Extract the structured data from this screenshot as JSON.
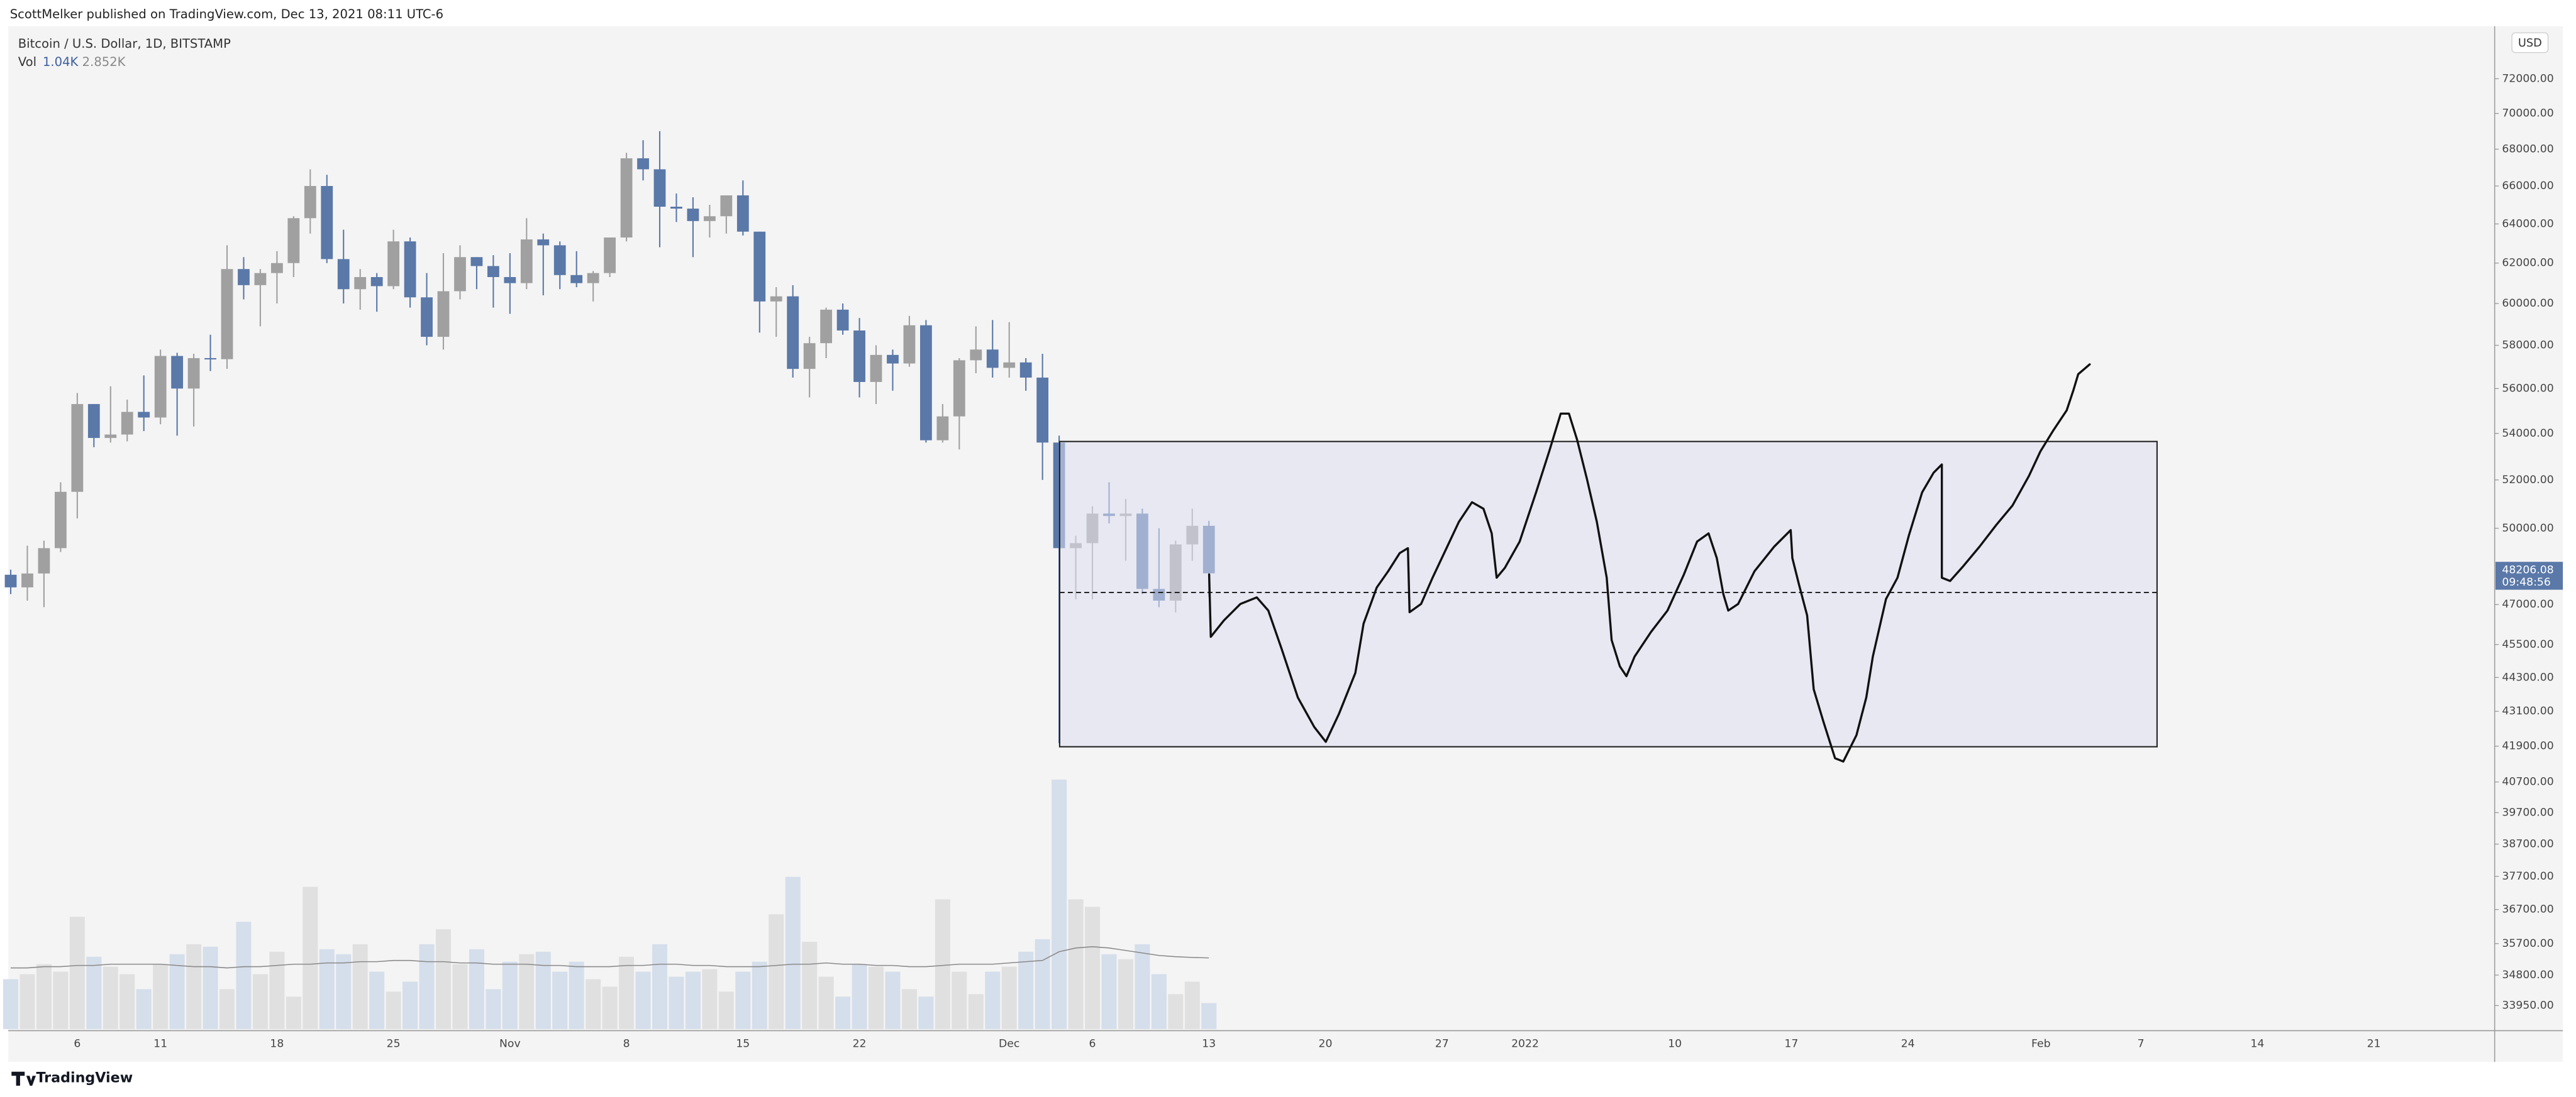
{
  "chart_data": {
    "type": "candlestick",
    "publisher_note": "ScottMelker published on TradingView.com, Dec 13, 2021 08:11 UTC-6",
    "title": "Bitcoin / U.S. Dollar, 1D, BITSTAMP",
    "volume_label": "Vol",
    "volume_last": "1.04K",
    "volume_ma_last": "2.852K",
    "countdown": "09:48:56",
    "currency": "USD",
    "brand": "TradingView",
    "log_scale": true,
    "grid": false,
    "up_color": "#a0a0a0",
    "down_color": "#5a78a8",
    "volume_up_color": "#e0e0e0",
    "volume_down_color": "#d5deeb",
    "volume_ma_color": "#8a8a8a",
    "ylim": [
      32520,
      75130
    ],
    "volume_ylim": [
      0,
      40
    ],
    "yticks": [
      {
        "value": 72000,
        "label": "72000.00"
      },
      {
        "value": 70000,
        "label": "70000.00"
      },
      {
        "value": 68000,
        "label": "68000.00"
      },
      {
        "value": 66000,
        "label": "66000.00"
      },
      {
        "value": 64000,
        "label": "64000.00"
      },
      {
        "value": 62000,
        "label": "62000.00"
      },
      {
        "value": 60000,
        "label": "60000.00"
      },
      {
        "value": 58000,
        "label": "58000.00"
      },
      {
        "value": 56000,
        "label": "56000.00"
      },
      {
        "value": 54000,
        "label": "54000.00"
      },
      {
        "value": 52000,
        "label": "52000.00"
      },
      {
        "value": 50000,
        "label": "50000.00"
      },
      {
        "value": 47000,
        "label": "47000.00"
      },
      {
        "value": 45500,
        "label": "45500.00"
      },
      {
        "value": 44300,
        "label": "44300.00"
      },
      {
        "value": 43100,
        "label": "43100.00"
      },
      {
        "value": 41900,
        "label": "41900.00"
      },
      {
        "value": 40700,
        "label": "40700.00"
      },
      {
        "value": 39700,
        "label": "39700.00"
      },
      {
        "value": 38700,
        "label": "38700.00"
      },
      {
        "value": 37700,
        "label": "37700.00"
      },
      {
        "value": 36700,
        "label": "36700.00"
      },
      {
        "value": 35700,
        "label": "35700.00"
      },
      {
        "value": 34800,
        "label": "34800.00"
      },
      {
        "value": 33950,
        "label": "33950.00"
      }
    ],
    "categories": [
      null,
      null,
      null,
      null,
      "6",
      null,
      null,
      null,
      null,
      "11",
      null,
      null,
      null,
      null,
      null,
      null,
      "18",
      null,
      null,
      null,
      null,
      null,
      null,
      "25",
      null,
      null,
      null,
      null,
      null,
      null,
      "Nov",
      null,
      null,
      null,
      null,
      null,
      null,
      "8",
      null,
      null,
      null,
      null,
      null,
      null,
      "15",
      null,
      null,
      null,
      null,
      null,
      null,
      "22",
      null,
      null,
      null,
      null,
      null,
      null,
      null,
      null,
      "Dec",
      null,
      null,
      null,
      null,
      "6",
      null,
      null,
      null,
      null,
      null,
      null,
      "13",
      null,
      null,
      null,
      null,
      null,
      null,
      "20",
      null,
      null,
      null,
      null,
      null,
      null,
      "27",
      null,
      null,
      null,
      null,
      "2022",
      null,
      null,
      null,
      null,
      null,
      null,
      null,
      null,
      "10",
      null,
      null,
      null,
      null,
      null,
      null,
      "17",
      null,
      null,
      null,
      null,
      null,
      null,
      "24",
      null,
      null,
      null,
      null,
      null,
      null,
      null,
      "Feb",
      null,
      null,
      null,
      null,
      null,
      "7",
      null,
      null,
      null,
      null,
      null,
      null,
      "14",
      null,
      null,
      null,
      null,
      null,
      null,
      "21"
    ],
    "open": [
      48150,
      47660,
      48200,
      49200,
      51500,
      55300,
      53800,
      53950,
      54950,
      54700,
      57500,
      56000,
      57400,
      57350,
      61700,
      60900,
      61500,
      62000,
      64300,
      66000,
      62200,
      60700,
      61300,
      60850,
      63100,
      60300,
      58400,
      60600,
      62300,
      61850,
      61300,
      61000,
      63200,
      62900,
      61400,
      61000,
      61500,
      63300,
      67500,
      66900,
      64900,
      64800,
      64150,
      64400,
      65500,
      63600,
      60100,
      60350,
      56900,
      58100,
      59700,
      58700,
      56300,
      57550,
      57150,
      58950,
      53700,
      54750,
      57300,
      57800,
      56950,
      57200,
      56500,
      53600,
      49200,
      49400,
      50600,
      50500,
      50600,
      47600,
      47150,
      49350,
      50100,
      null,
      null,
      null,
      null,
      null,
      null,
      null,
      null,
      null,
      null,
      null,
      null,
      null,
      null,
      null,
      null,
      null,
      null,
      null,
      null,
      null,
      null,
      null,
      null,
      null,
      null,
      null,
      null,
      null,
      null,
      null,
      null,
      null,
      null,
      null,
      null,
      null,
      null,
      null,
      null,
      null,
      null,
      null,
      null,
      null,
      null,
      null,
      null,
      null,
      null,
      null,
      null,
      null,
      null,
      null,
      null,
      null,
      null,
      null,
      null,
      null,
      null,
      null,
      null,
      null,
      null,
      null,
      null,
      null,
      null
    ],
    "high": [
      48350,
      49300,
      49500,
      51900,
      55800,
      55300,
      56100,
      55500,
      56600,
      57800,
      57650,
      57600,
      58500,
      62900,
      62300,
      61700,
      62600,
      64400,
      66900,
      66600,
      63700,
      61700,
      61500,
      63700,
      63300,
      61500,
      62500,
      62900,
      62300,
      62400,
      62500,
      64300,
      63500,
      63100,
      62600,
      61600,
      63300,
      67800,
      68500,
      69000,
      65600,
      65400,
      65000,
      65500,
      66300,
      63600,
      60800,
      60900,
      58400,
      59800,
      60000,
      59300,
      58000,
      57800,
      59400,
      59200,
      55300,
      57400,
      58900,
      59200,
      59100,
      57400,
      57600,
      53900,
      49700,
      50900,
      51900,
      51200,
      50800,
      50000,
      49500,
      50800,
      50300,
      null,
      null,
      null,
      null,
      null,
      null,
      null,
      null,
      null,
      null,
      null,
      null,
      null,
      null,
      null,
      null,
      null,
      null,
      null,
      null,
      null,
      null,
      null,
      null,
      null,
      null,
      null,
      null,
      null,
      null,
      null,
      null,
      null,
      null,
      null,
      null,
      null,
      null,
      null,
      null,
      null,
      null,
      null,
      null,
      null,
      null,
      null,
      null,
      null,
      null,
      null,
      null,
      null,
      null,
      null,
      null,
      null,
      null,
      null,
      null,
      null,
      null,
      null,
      null,
      null,
      null,
      null,
      null,
      null,
      null
    ],
    "low": [
      47400,
      47150,
      46900,
      49050,
      50400,
      53400,
      53600,
      53650,
      54100,
      54400,
      53900,
      54300,
      56800,
      56900,
      60200,
      58900,
      60000,
      61300,
      63500,
      62000,
      60000,
      59700,
      59600,
      60700,
      59800,
      58000,
      57800,
      60200,
      60700,
      59800,
      59500,
      60700,
      60400,
      60700,
      60800,
      60100,
      61300,
      63100,
      66300,
      62800,
      64100,
      62300,
      63300,
      63500,
      63400,
      58600,
      58400,
      56500,
      55600,
      57400,
      58500,
      55600,
      55300,
      55900,
      57000,
      53600,
      53600,
      53300,
      56700,
      56500,
      56500,
      55900,
      52000,
      42000,
      47200,
      47200,
      50200,
      48700,
      47400,
      46900,
      46700,
      48700,
      47300,
      null,
      null,
      null,
      null,
      null,
      null,
      null,
      null,
      null,
      null,
      null,
      null,
      null,
      null,
      null,
      null,
      null,
      null,
      null,
      null,
      null,
      null,
      null,
      null,
      null,
      null,
      null,
      null,
      null,
      null,
      null,
      null,
      null,
      null,
      null,
      null,
      null,
      null,
      null,
      null,
      null,
      null,
      null,
      null,
      null,
      null,
      null,
      null,
      null,
      null,
      null,
      null,
      null,
      null,
      null,
      null,
      null,
      null,
      null,
      null,
      null,
      null,
      null,
      null,
      null,
      null,
      null,
      null,
      null,
      null
    ],
    "close": [
      47660,
      48200,
      49200,
      51500,
      55300,
      53800,
      53950,
      54950,
      54700,
      57500,
      56000,
      57400,
      57350,
      61700,
      60900,
      61500,
      62000,
      64300,
      66000,
      62200,
      60700,
      61300,
      60850,
      63100,
      60300,
      58400,
      60600,
      62300,
      61850,
      61300,
      61000,
      63200,
      62900,
      61400,
      61000,
      61500,
      63300,
      67500,
      66900,
      64900,
      64800,
      64150,
      64400,
      65500,
      63600,
      60100,
      60350,
      56900,
      58100,
      59700,
      58700,
      56300,
      57550,
      57150,
      58950,
      53700,
      54750,
      57300,
      57800,
      56950,
      57200,
      56500,
      53600,
      49200,
      49400,
      50600,
      50500,
      50600,
      47600,
      47150,
      49350,
      50100,
      48206.08,
      null,
      null,
      null,
      null,
      null,
      null,
      null,
      null,
      null,
      null,
      null,
      null,
      null,
      null,
      null,
      null,
      null,
      null,
      null,
      null,
      null,
      null,
      null,
      null,
      null,
      null,
      null,
      null,
      null,
      null,
      null,
      null,
      null,
      null,
      null,
      null,
      null,
      null,
      null,
      null,
      null,
      null,
      null,
      null,
      null,
      null,
      null,
      null,
      null,
      null,
      null,
      null,
      null,
      null,
      null,
      null,
      null,
      null,
      null,
      null,
      null,
      null,
      null,
      null,
      null,
      null,
      null,
      null,
      null,
      null
    ],
    "volume": [
      2.0,
      2.2,
      2.6,
      2.3,
      4.5,
      2.9,
      2.5,
      2.2,
      1.6,
      2.6,
      3.0,
      3.4,
      3.3,
      1.6,
      4.3,
      2.2,
      3.1,
      1.3,
      5.7,
      3.2,
      3.0,
      3.4,
      2.3,
      1.5,
      1.9,
      3.4,
      4.0,
      2.6,
      3.2,
      1.6,
      2.7,
      3.0,
      3.1,
      2.3,
      2.7,
      2.0,
      1.7,
      2.9,
      2.3,
      3.4,
      2.1,
      2.3,
      2.4,
      1.5,
      2.3,
      2.7,
      4.6,
      6.1,
      3.5,
      2.1,
      1.3,
      2.6,
      2.5,
      2.3,
      1.6,
      1.3,
      5.2,
      2.3,
      1.4,
      2.3,
      2.5,
      3.1,
      3.6,
      10.0,
      5.2,
      4.9,
      3.0,
      2.8,
      3.4,
      2.2,
      1.4,
      1.9,
      1.04,
      null,
      null,
      null,
      null,
      null,
      null,
      null,
      null,
      null,
      null,
      null,
      null,
      null,
      null,
      null,
      null,
      null,
      null,
      null,
      null,
      null,
      null,
      null,
      null,
      null,
      null,
      null,
      null,
      null,
      null,
      null,
      null,
      null,
      null,
      null,
      null,
      null,
      null,
      null,
      null,
      null,
      null,
      null,
      null,
      null,
      null,
      null,
      null,
      null,
      null,
      null,
      null,
      null,
      null,
      null,
      null,
      null,
      null,
      null,
      null,
      null,
      null,
      null,
      null,
      null,
      null,
      null,
      null,
      null,
      null
    ],
    "volume_ma": [
      2.45,
      2.45,
      2.5,
      2.5,
      2.55,
      2.55,
      2.6,
      2.6,
      2.6,
      2.6,
      2.55,
      2.5,
      2.5,
      2.45,
      2.5,
      2.5,
      2.55,
      2.6,
      2.6,
      2.65,
      2.65,
      2.7,
      2.7,
      2.75,
      2.75,
      2.7,
      2.7,
      2.65,
      2.65,
      2.6,
      2.6,
      2.6,
      2.55,
      2.55,
      2.5,
      2.5,
      2.5,
      2.55,
      2.55,
      2.6,
      2.6,
      2.55,
      2.55,
      2.5,
      2.5,
      2.5,
      2.55,
      2.6,
      2.6,
      2.65,
      2.6,
      2.6,
      2.55,
      2.55,
      2.5,
      2.5,
      2.55,
      2.6,
      2.6,
      2.6,
      2.65,
      2.7,
      2.75,
      3.1,
      3.25,
      3.3,
      3.25,
      3.15,
      3.05,
      2.95,
      2.9,
      2.87,
      2.852,
      null,
      null,
      null,
      null,
      null,
      null,
      null,
      null,
      null,
      null,
      null,
      null,
      null,
      null,
      null,
      null,
      null,
      null,
      null,
      null,
      null,
      null,
      null,
      null,
      null,
      null,
      null,
      null,
      null,
      null,
      null,
      null,
      null,
      null,
      null,
      null,
      null,
      null,
      null,
      null,
      null,
      null,
      null,
      null,
      null,
      null,
      null,
      null,
      null,
      null,
      null,
      null,
      null,
      null,
      null,
      null,
      null,
      null,
      null,
      null,
      null,
      null,
      null,
      null,
      null,
      null,
      null,
      null,
      null,
      null
    ]
  }
}
